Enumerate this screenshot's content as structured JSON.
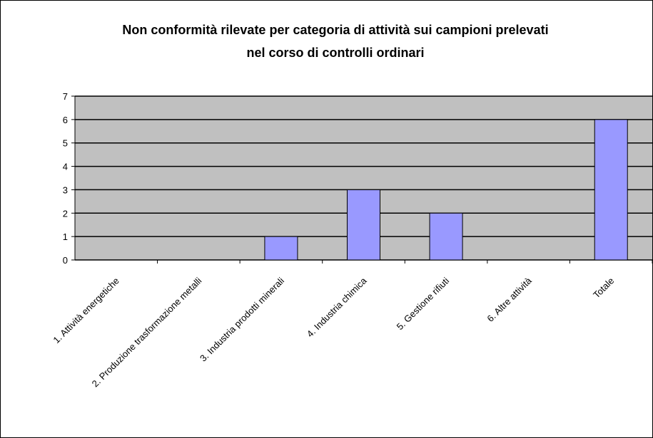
{
  "chart_data": {
    "type": "bar",
    "title": [
      "Non conformità rilevate per categoria di attività sui campioni prelevati",
      "nel corso di controlli ordinari"
    ],
    "categories": [
      "1. Attività energetiche",
      "2. Produzione trasformazione metalli",
      "3. Industria prodotti minerali",
      "4. Industria chimica",
      "5. Gestione rifiuti",
      "6. Altre attività",
      "Totale"
    ],
    "values": [
      0,
      0,
      1,
      3,
      2,
      0,
      6
    ],
    "color": "#9999ff",
    "ylim": [
      0,
      7
    ],
    "yticks": [
      0,
      1,
      2,
      3,
      4,
      5,
      6,
      7
    ],
    "grid": true
  }
}
